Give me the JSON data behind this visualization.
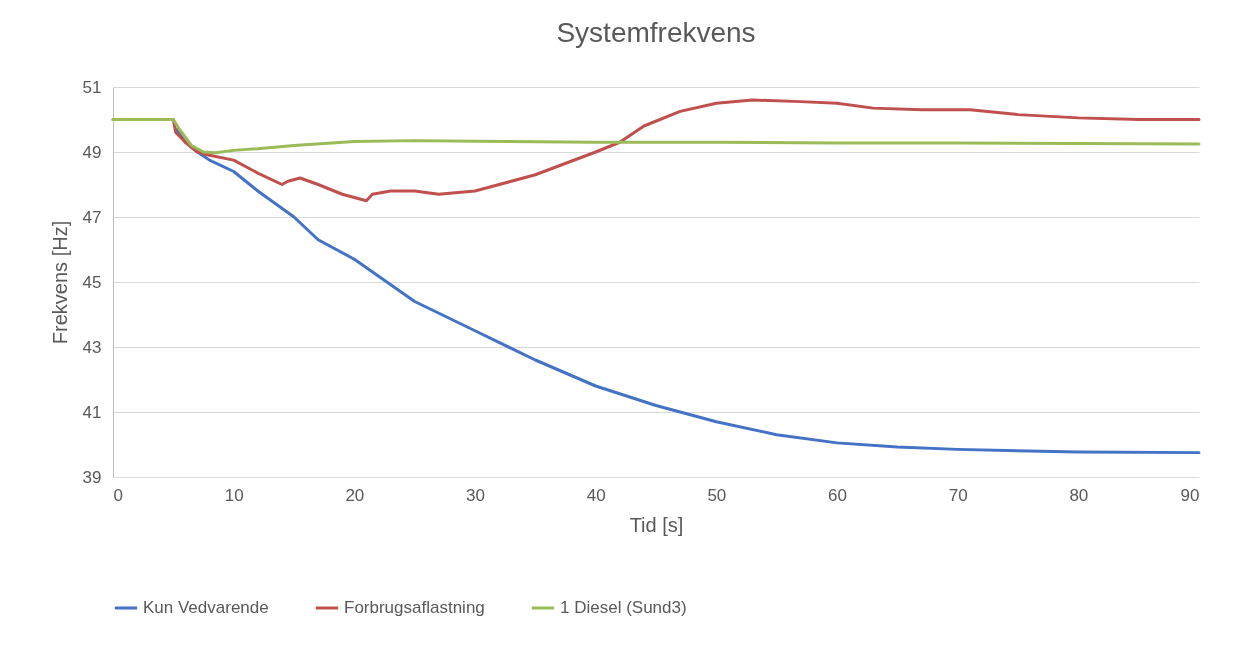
{
  "chart_data": {
    "type": "line",
    "title": "Systemfrekvens",
    "xlabel": "Tid [s]",
    "ylabel": "Frekvens [Hz]",
    "xlim": [
      0,
      90
    ],
    "xticks": [
      0,
      10,
      20,
      30,
      40,
      50,
      60,
      70,
      80,
      90
    ],
    "ylim": [
      39,
      51
    ],
    "yticks": [
      39,
      41,
      43,
      45,
      47,
      49,
      51
    ],
    "grid": "y",
    "legend": "bottom",
    "marker": "none",
    "line_style": "solid",
    "series": [
      {
        "name": "Kun Vedvarende",
        "color": "#4472c4",
        "x": [
          5.3,
          6,
          7,
          8,
          10,
          12,
          15,
          17,
          20,
          25,
          30,
          35,
          40,
          45,
          50,
          55,
          60,
          65,
          70,
          80,
          90
        ],
        "values": [
          49.7,
          49.3,
          49.0,
          48.75,
          48.4,
          47.8,
          47.0,
          46.3,
          45.7,
          44.4,
          43.5,
          42.6,
          41.8,
          41.2,
          40.7,
          40.3,
          40.05,
          39.92,
          39.85,
          39.77,
          39.75
        ]
      },
      {
        "name": "Forbrugsaflastning",
        "color": "#c0504d",
        "x": [
          0,
          5,
          5.2,
          6,
          7,
          8,
          10,
          12,
          14,
          14.5,
          15.5,
          17,
          19,
          21,
          21.5,
          23,
          25,
          27,
          30,
          35,
          40,
          42,
          44,
          47,
          50,
          53,
          57,
          60,
          63,
          67,
          71,
          75,
          80,
          85,
          90
        ],
        "values": [
          50,
          50,
          49.6,
          49.3,
          49.0,
          48.9,
          48.75,
          48.35,
          48.0,
          48.1,
          48.2,
          48.0,
          47.7,
          47.5,
          47.7,
          47.8,
          47.8,
          47.7,
          47.8,
          48.3,
          49.0,
          49.3,
          49.8,
          50.25,
          50.5,
          50.6,
          50.55,
          50.5,
          50.35,
          50.3,
          50.3,
          50.15,
          50.05,
          50.0,
          50.0
        ]
      },
      {
        "name": "1 Diesel (Sund3)",
        "color": "#9bbb59",
        "x": [
          0,
          5,
          5.5,
          6.5,
          7.5,
          8.5,
          10,
          12,
          15,
          20,
          25,
          30,
          40,
          50,
          60,
          70,
          80,
          90
        ],
        "values": [
          50,
          50,
          49.7,
          49.2,
          49.0,
          48.98,
          49.05,
          49.1,
          49.2,
          49.32,
          49.35,
          49.33,
          49.3,
          49.3,
          49.28,
          49.28,
          49.26,
          49.25
        ]
      }
    ]
  }
}
